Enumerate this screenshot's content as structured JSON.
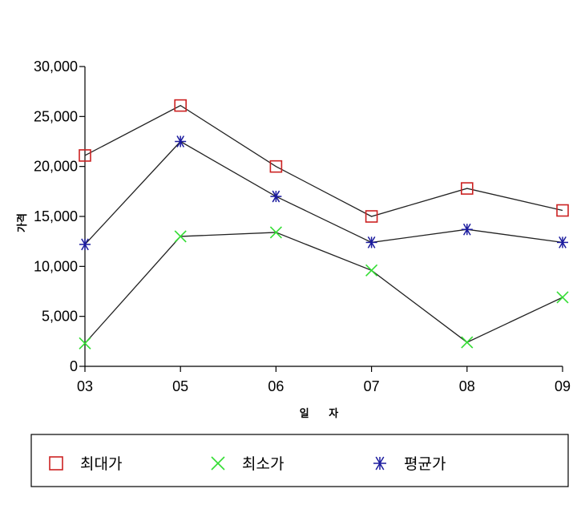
{
  "chart_data": {
    "type": "line",
    "title": "",
    "xlabel": "일 자",
    "ylabel": "가격",
    "categories": [
      "03",
      "05",
      "06",
      "07",
      "08",
      "09"
    ],
    "ylim": [
      0,
      30000
    ],
    "yticks": [
      0,
      5000,
      10000,
      15000,
      20000,
      25000,
      30000
    ],
    "ytick_labels": [
      "0",
      "5,000",
      "10,000",
      "15,000",
      "20,000",
      "25,000",
      "30,000"
    ],
    "grid": false,
    "legend_position": "bottom",
    "series": [
      {
        "name": "최대가",
        "marker": "square",
        "color": "#cc2222",
        "values": [
          21100,
          26100,
          20000,
          15000,
          17800,
          15600
        ]
      },
      {
        "name": "최소가",
        "marker": "x",
        "color": "#33dd33",
        "values": [
          2300,
          13000,
          13400,
          9600,
          2400,
          6900
        ]
      },
      {
        "name": "평균가",
        "marker": "asterisk",
        "color": "#1a1a9e",
        "values": [
          12200,
          22500,
          17000,
          12400,
          13700,
          12400
        ]
      }
    ]
  }
}
